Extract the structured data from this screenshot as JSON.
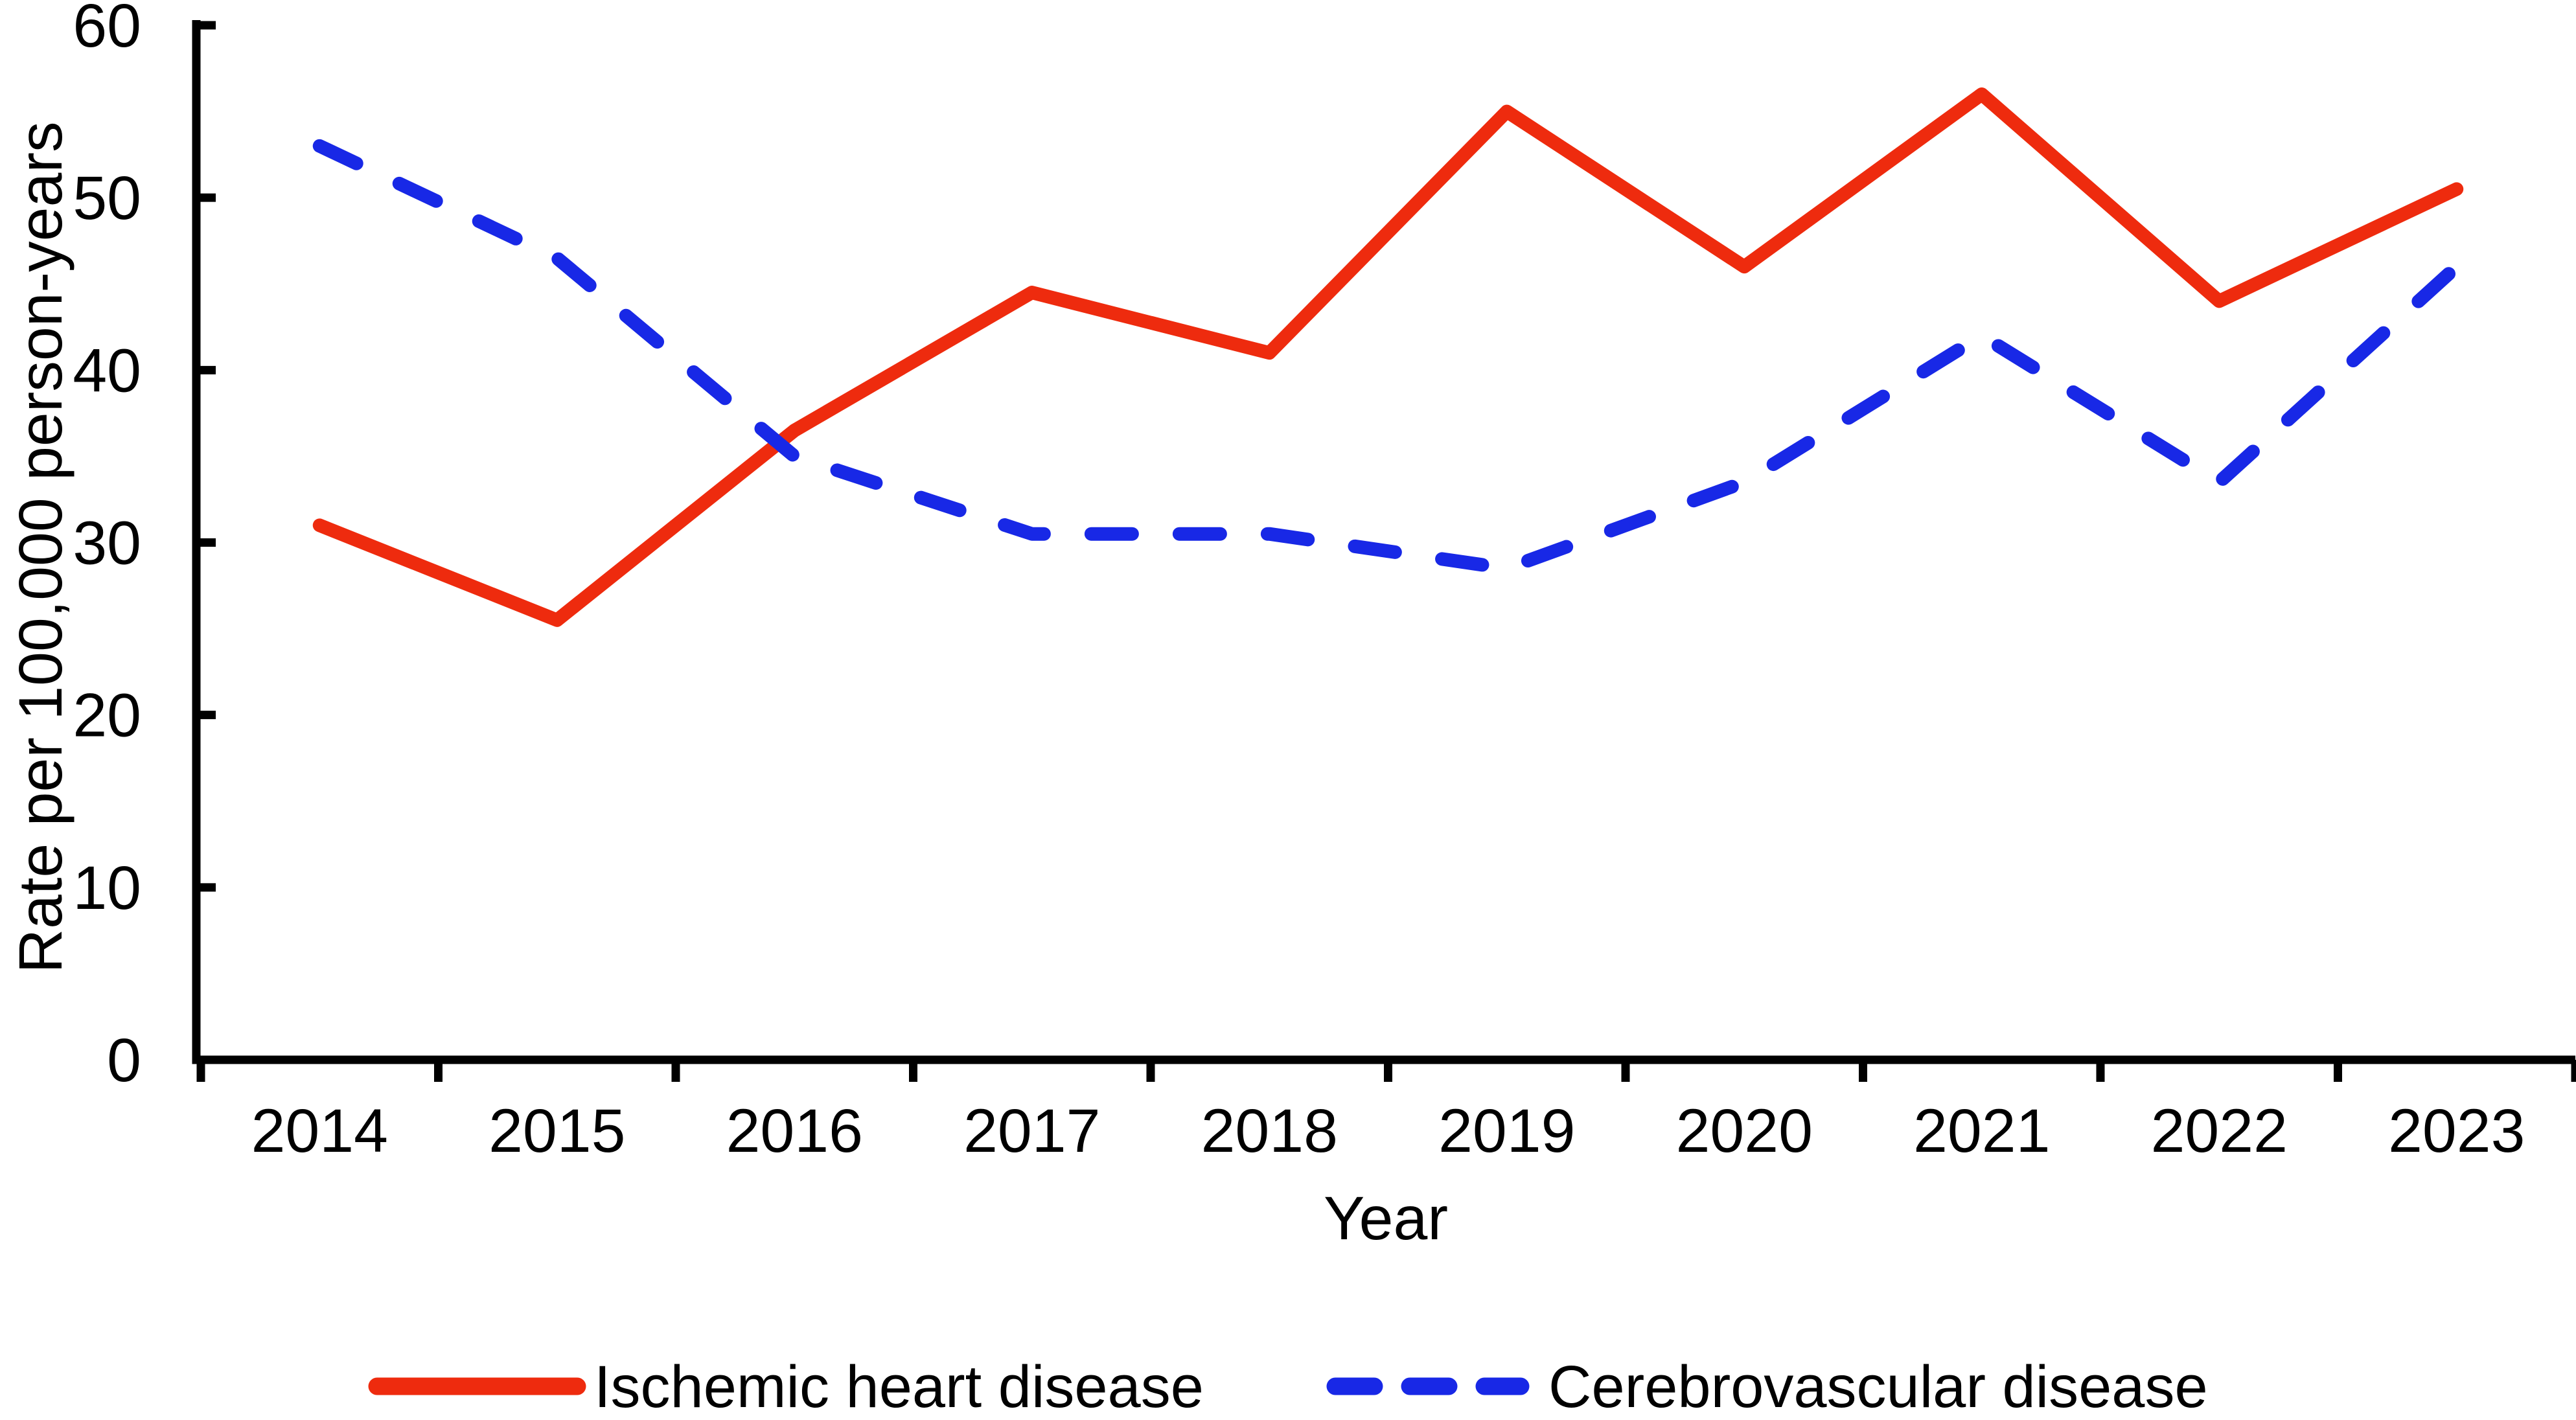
{
  "chart_data": {
    "type": "line",
    "title": "",
    "categories": [
      "2014",
      "2015",
      "2016",
      "2017",
      "2018",
      "2019",
      "2020",
      "2021",
      "2022",
      "2023"
    ],
    "series": [
      {
        "name": "Ischemic heart disease",
        "line_style": "solid",
        "color": "#ee2b0e",
        "values": [
          31,
          25.5,
          36.5,
          44.5,
          41,
          55,
          46,
          56,
          44,
          50.5
        ]
      },
      {
        "name": "Cerebrovascular disease",
        "line_style": "dashed",
        "color": "#1828e6",
        "values": [
          53,
          46.5,
          35,
          30.5,
          30.5,
          28.5,
          33.5,
          42,
          33.5,
          46
        ]
      }
    ],
    "xlabel": "Year",
    "ylabel": "Rate per 100,000 person-years",
    "ylim": [
      0,
      60
    ],
    "yticks": [
      0,
      10,
      20,
      30,
      40,
      50,
      60
    ],
    "grid": false,
    "legend_position": "bottom",
    "axis_color": "#000000"
  }
}
